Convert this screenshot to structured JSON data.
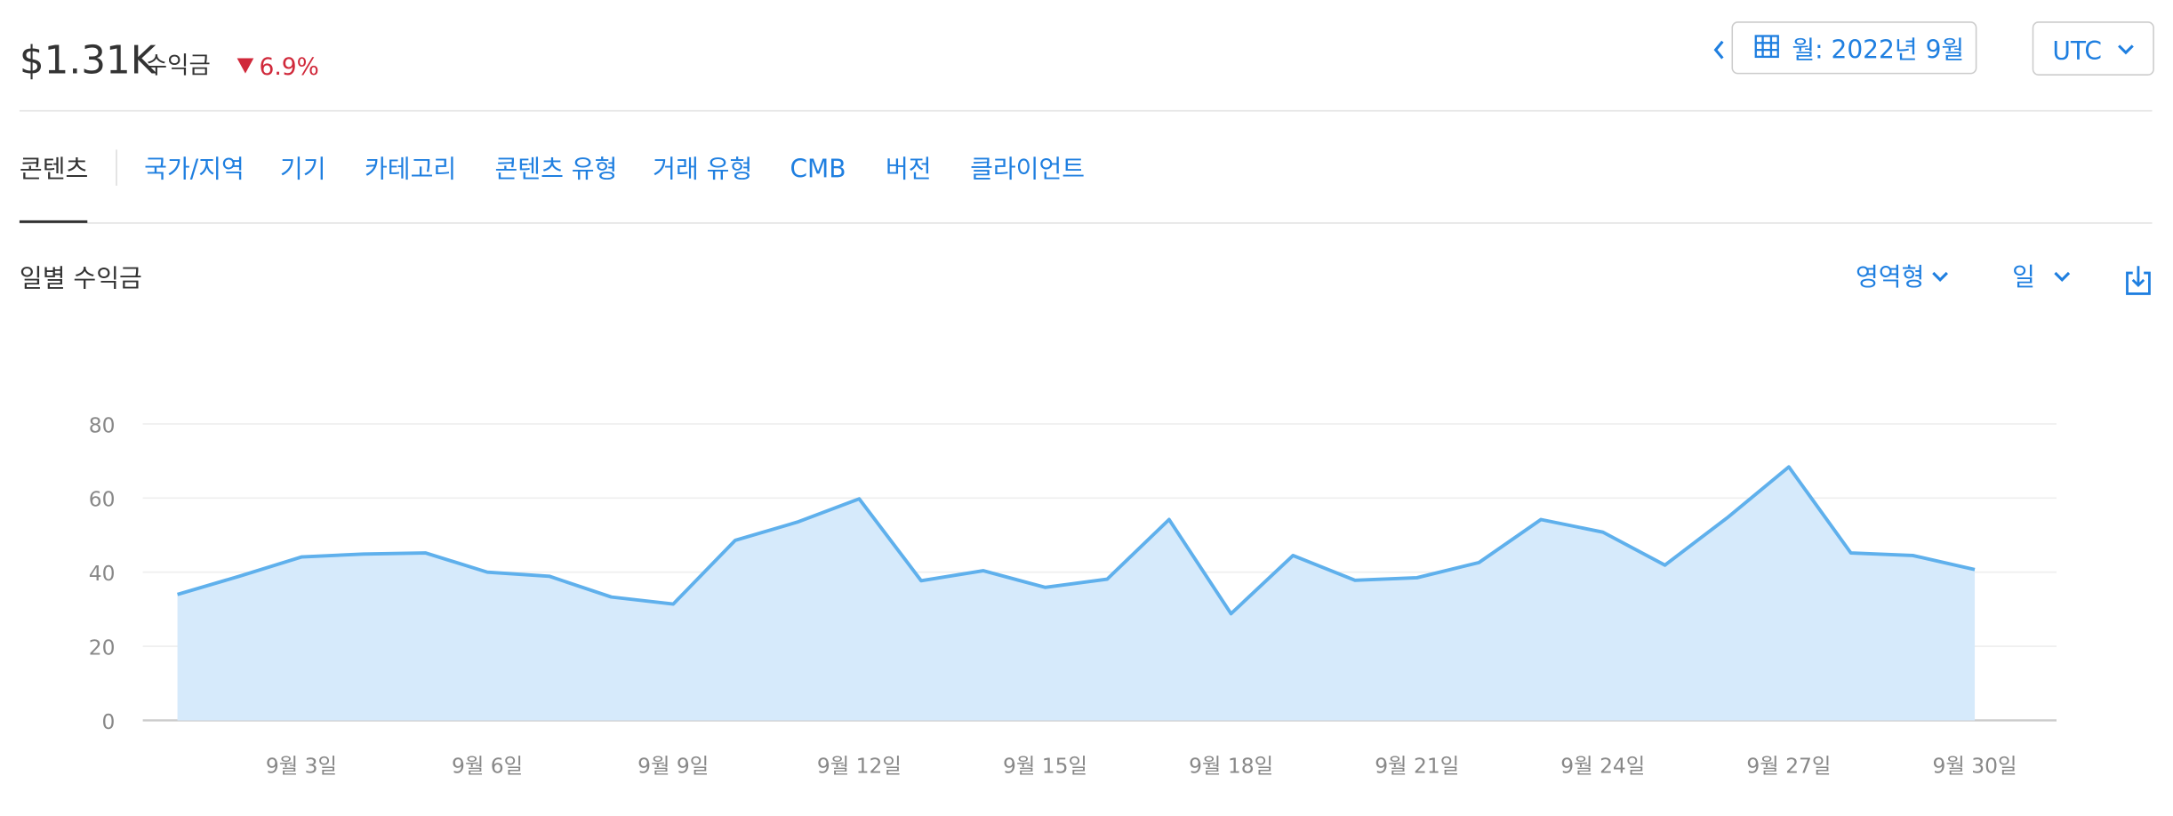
{
  "header": {
    "amount": "$1.31K",
    "amount_label": "수익금",
    "change": "6.9%",
    "date_button": "월: 2022년 9월",
    "timezone": "UTC"
  },
  "tabs": [
    "콘텐츠",
    "국가/지역",
    "기기",
    "카테고리",
    "콘텐츠 유형",
    "거래 유형",
    "CMB",
    "버전",
    "클라이언트"
  ],
  "section": {
    "title": "일별 수익금",
    "chart_type_menu": "영역형",
    "period_menu": "일"
  },
  "chart_data": {
    "type": "area",
    "color": "#5fb0ec",
    "fill": "#d6eafb",
    "categories": [
      null,
      null,
      "9월 3일",
      null,
      null,
      "9월 6일",
      null,
      null,
      "9월 9일",
      null,
      null,
      "9월 12일",
      null,
      null,
      "9월 15일",
      null,
      null,
      "9월 18일",
      null,
      null,
      "9월 21일",
      null,
      null,
      "9월 24일",
      null,
      null,
      "9월 27일",
      null,
      null,
      "9월 30일"
    ],
    "values": [
      34.0,
      38.9,
      44.1,
      44.9,
      45.2,
      40.0,
      38.9,
      33.3,
      31.4,
      48.6,
      53.5,
      59.8,
      37.7,
      40.4,
      35.9,
      38.1,
      54.2,
      28.8,
      44.5,
      37.8,
      38.5,
      42.6,
      54.2,
      50.8,
      41.9,
      54.6,
      68.4,
      45.2,
      44.5,
      40.7
    ],
    "ylim": [
      0,
      80
    ],
    "yticks": [
      0,
      20,
      40,
      60,
      80
    ],
    "grid": true
  }
}
